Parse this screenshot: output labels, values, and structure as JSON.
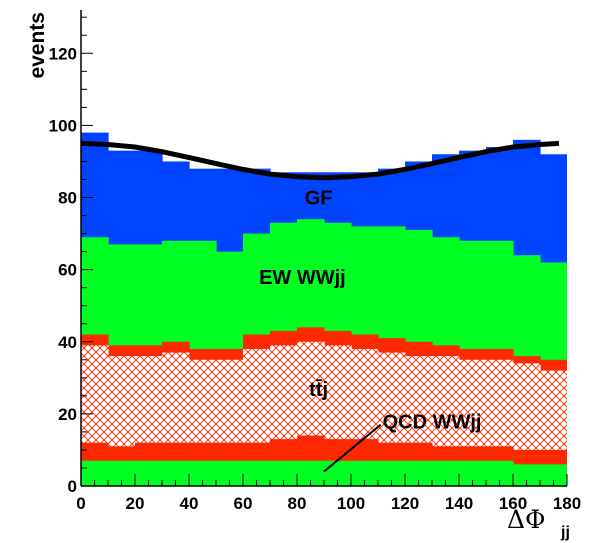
{
  "chart_data": {
    "type": "area",
    "title": "",
    "ylabel": "events",
    "xlabel": "ΔΦ",
    "xlabel_subscript": "jj",
    "xlim": [
      0,
      180
    ],
    "ylim": [
      0,
      132
    ],
    "x_ticks": [
      "0",
      "20",
      "40",
      "60",
      "80",
      "100",
      "120",
      "140",
      "160",
      "180"
    ],
    "y_ticks": [
      "0",
      "20",
      "40",
      "60",
      "80",
      "100",
      "120"
    ],
    "x_tick_values": [
      0,
      20,
      40,
      60,
      80,
      100,
      120,
      140,
      160,
      180
    ],
    "y_tick_values": [
      0,
      20,
      40,
      60,
      80,
      100,
      120
    ],
    "bin_edges": [
      0,
      10,
      20,
      30,
      40,
      50,
      60,
      70,
      80,
      90,
      100,
      110,
      120,
      130,
      140,
      150,
      160,
      170,
      180
    ],
    "stacked_series_cumulative_top": [
      {
        "key": "gf",
        "label": "GF",
        "color": "#0044ff",
        "values": [
          98,
          93,
          93,
          90,
          88,
          88,
          88,
          87,
          87,
          87,
          87,
          88,
          90,
          92,
          93,
          94,
          96,
          92
        ]
      },
      {
        "key": "ew",
        "label": "EW  WWjj",
        "color": "#00ff22",
        "values": [
          69,
          67,
          67,
          68,
          68,
          65,
          70,
          73,
          74,
          73,
          72,
          72,
          71,
          69,
          68,
          68,
          64,
          62
        ]
      },
      {
        "key": "ttbar_cap",
        "label": "",
        "color": "#ff2800",
        "values": [
          42,
          39,
          39,
          40,
          38,
          38,
          42,
          43,
          44,
          43,
          42,
          41,
          40,
          39,
          38,
          38,
          36,
          35
        ]
      },
      {
        "key": "ttbar",
        "label": "tt̄j",
        "color": "#ff2800",
        "hatched": true,
        "values": [
          39,
          36,
          36,
          37,
          35,
          35,
          38,
          39,
          40,
          39,
          38,
          37,
          36,
          36,
          35,
          35,
          34,
          32
        ]
      },
      {
        "key": "qcd_cap",
        "label": "",
        "color": "#ff2800",
        "values": [
          12,
          11,
          12,
          12,
          12,
          12,
          12,
          13,
          14,
          13,
          13,
          12,
          12,
          11,
          11,
          11,
          10,
          10
        ]
      },
      {
        "key": "qcd",
        "label": "QCD  WWjj",
        "color": "#00ff22",
        "values": [
          7,
          7,
          7,
          7,
          7,
          7,
          7,
          7,
          7,
          7,
          7,
          7,
          7,
          7,
          7,
          7,
          6,
          6
        ]
      }
    ],
    "overlay_curve": {
      "color": "#000000",
      "x": [
        0,
        10,
        20,
        30,
        40,
        50,
        60,
        70,
        80,
        90,
        100,
        110,
        120,
        130,
        140,
        150,
        160,
        170,
        177
      ],
      "y": [
        95,
        94.7,
        94.0,
        92.7,
        91.1,
        89.4,
        87.8,
        86.5,
        85.8,
        85.5,
        85.8,
        86.5,
        87.8,
        89.4,
        91.1,
        92.7,
        94.0,
        94.7,
        95
      ]
    },
    "annotations": [
      {
        "key": "gf",
        "text": "GF",
        "x": 88,
        "y": 78
      },
      {
        "key": "ew",
        "text": "EW  WWjj",
        "x": 82,
        "y": 56
      },
      {
        "key": "tt",
        "text": "tt̄j",
        "x": 88,
        "y": 25
      },
      {
        "key": "qcd",
        "text": "QCD  WWjj",
        "x": 130,
        "y": 16
      },
      {
        "key": "qcd-arrow",
        "arrow_from": [
          111,
          17
        ],
        "arrow_to": [
          90,
          4
        ]
      }
    ],
    "grid": false,
    "legend": "none"
  }
}
